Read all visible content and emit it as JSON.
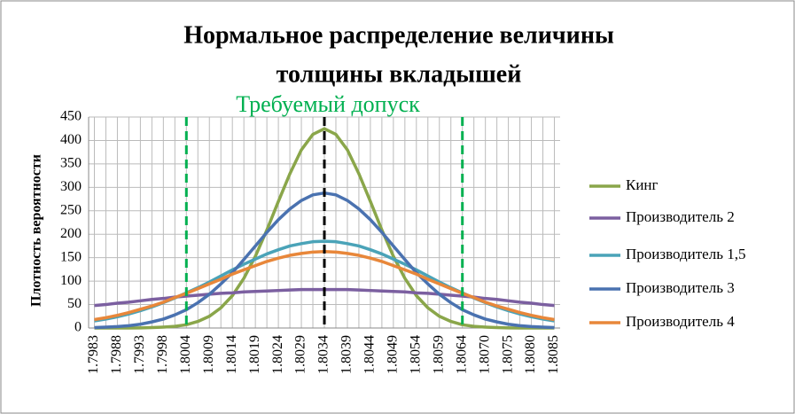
{
  "chart_data": {
    "type": "line",
    "title": [
      "Нормальное распределение величины",
      "толщины вкладышей"
    ],
    "y_label": "Плотность вероятности",
    "annotation": "Требуемый допуск",
    "categories": [
      "1.7983",
      null,
      "1.7988",
      null,
      "1.7993",
      null,
      "1.7998",
      null,
      "1.8004",
      null,
      "1.8009",
      null,
      "1.8014",
      null,
      "1.8019",
      null,
      "1.8024",
      null,
      "1.8029",
      null,
      "1.8034",
      null,
      "1.8039",
      null,
      "1.8044",
      null,
      "1.8049",
      null,
      "1.8054",
      null,
      "1.8059",
      null,
      "1.8064",
      null,
      "1.8070",
      null,
      "1.8075",
      null,
      "1.8080",
      null,
      "1.8085"
    ],
    "series": [
      {
        "name": "Кинг",
        "color": "#8aa64a",
        "values": [
          0,
          0,
          0,
          0,
          0.3,
          1,
          2,
          3.5,
          7,
          14,
          25,
          43,
          69,
          106,
          153,
          209,
          270,
          329,
          380,
          413,
          425,
          413,
          380,
          329,
          270,
          209,
          153,
          106,
          69,
          43,
          25,
          14,
          7,
          3.5,
          2,
          1,
          0.3,
          0,
          0,
          0,
          0
        ]
      },
      {
        "name": "Производитель 2",
        "color": "#7b5fa0",
        "values": [
          48,
          50,
          53,
          55,
          58,
          61,
          63,
          66,
          68,
          70,
          72,
          74,
          75,
          77,
          78,
          79,
          80,
          81,
          82,
          82,
          82,
          82,
          82,
          81,
          80,
          79,
          78,
          77,
          75,
          74,
          72,
          70,
          68,
          66,
          63,
          61,
          58,
          55,
          53,
          50,
          48
        ]
      },
      {
        "name": "Производитель 1,5",
        "color": "#4aa3b8",
        "values": [
          15,
          19,
          24,
          30,
          37,
          45,
          54,
          64,
          75,
          86,
          98,
          111,
          124,
          136,
          147,
          158,
          167,
          175,
          180,
          184,
          185,
          184,
          180,
          175,
          167,
          158,
          147,
          136,
          124,
          111,
          98,
          86,
          75,
          64,
          54,
          45,
          37,
          30,
          24,
          19,
          15
        ]
      },
      {
        "name": "Производитель 3",
        "color": "#4a72b0",
        "values": [
          1,
          2,
          3,
          5,
          8,
          13,
          19,
          28,
          39,
          54,
          72,
          94,
          118,
          146,
          175,
          204,
          231,
          254,
          272,
          284,
          288,
          284,
          272,
          254,
          231,
          204,
          175,
          146,
          118,
          94,
          72,
          54,
          39,
          28,
          19,
          13,
          8,
          5,
          3,
          2,
          1
        ]
      },
      {
        "name": "Производитель 4",
        "color": "#e8873a",
        "values": [
          18,
          22,
          27,
          33,
          40,
          47,
          55,
          65,
          74,
          84,
          94,
          104,
          115,
          124,
          133,
          142,
          149,
          155,
          159,
          162,
          163,
          162,
          159,
          155,
          149,
          142,
          133,
          124,
          115,
          104,
          94,
          84,
          74,
          65,
          55,
          47,
          40,
          33,
          27,
          22,
          18
        ]
      }
    ],
    "vlines": [
      {
        "at": "1.8004",
        "color": "#00b050"
      },
      {
        "at": "1.8064",
        "color": "#00b050"
      },
      {
        "at": "1.8034",
        "color": "#000000"
      }
    ],
    "annotation_color": "#00b050",
    "ylim": [
      0,
      450
    ],
    "yticks": [
      0,
      50,
      100,
      150,
      200,
      250,
      300,
      350,
      400,
      450
    ],
    "grid": true
  }
}
